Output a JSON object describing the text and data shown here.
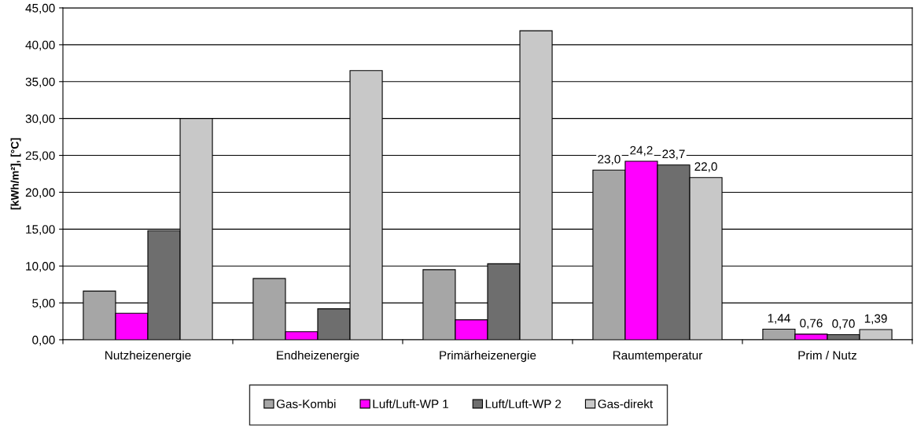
{
  "chart_data": {
    "type": "bar",
    "ylabel": "[kWh/m²], [°C]",
    "categories": [
      "Nutzheizenergie",
      "Endheizenergie",
      "Primärheizenergie",
      "Raumtemperatur",
      "Prim / Nutz"
    ],
    "series": [
      {
        "name": "Gas-Kombi",
        "color": "#a6a6a6",
        "values": [
          6.6,
          8.3,
          9.5,
          23.0,
          1.44
        ],
        "value_labels": [
          null,
          null,
          null,
          "23,0",
          "1,44"
        ]
      },
      {
        "name": "Luft/Luft-WP 1",
        "color": "#ff00ff",
        "values": [
          3.6,
          1.1,
          2.7,
          24.2,
          0.76
        ],
        "value_labels": [
          null,
          null,
          null,
          "24,2",
          "0,76"
        ]
      },
      {
        "name": "Luft/Luft-WP 2",
        "color": "#6e6e6e",
        "values": [
          14.8,
          4.2,
          10.3,
          23.7,
          0.7
        ],
        "value_labels": [
          null,
          null,
          null,
          "23,7",
          "0,70"
        ]
      },
      {
        "name": "Gas-direkt",
        "color": "#c8c8c8",
        "values": [
          30.0,
          36.5,
          41.9,
          22.0,
          1.39
        ],
        "value_labels": [
          null,
          null,
          null,
          "22,0",
          "1,39"
        ]
      }
    ],
    "ylim": [
      0,
      45
    ],
    "yticks": [
      {
        "value": 0,
        "label": "0,00"
      },
      {
        "value": 5,
        "label": "5,00"
      },
      {
        "value": 10,
        "label": "10,00"
      },
      {
        "value": 15,
        "label": "15,00"
      },
      {
        "value": 20,
        "label": "20,00"
      },
      {
        "value": 25,
        "label": "25,00"
      },
      {
        "value": 30,
        "label": "30,00"
      },
      {
        "value": 35,
        "label": "35,00"
      },
      {
        "value": 40,
        "label": "40,00"
      },
      {
        "value": 45,
        "label": "45,00"
      }
    ],
    "grid": "y",
    "legend": "bottom"
  }
}
